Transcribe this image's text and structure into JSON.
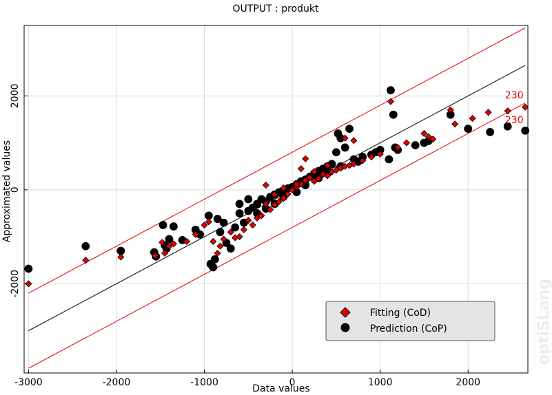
{
  "colors": {
    "fitting": "#e00000",
    "prediction": "#000000",
    "bounds": "#e82020",
    "ideal": "#222222"
  },
  "watermark": "optiSLang",
  "chart_data": {
    "type": "scatter",
    "title": "OUTPUT : produkt",
    "xlabel": "Data values",
    "ylabel": "Approximated values",
    "xlim": [
      -3050,
      2680
    ],
    "ylim": [
      -3900,
      3500
    ],
    "x_ticks": [
      -3000,
      -2000,
      -1000,
      0,
      1000,
      2000
    ],
    "y_ticks": [
      -2000,
      0,
      2000
    ],
    "grid": true,
    "legend_position": "bottom-right",
    "lines": [
      {
        "role": "ideal",
        "x": [
          -3000,
          2650
        ],
        "y": [
          -3000,
          2650
        ]
      },
      {
        "role": "upper-bound",
        "x": [
          -3000,
          2650
        ],
        "y": [
          -2200,
          3450
        ]
      },
      {
        "role": "lower-bound",
        "x": [
          -3000,
          2650
        ],
        "y": [
          -3800,
          1850
        ]
      }
    ],
    "annotations": [
      {
        "text": "230",
        "x": 2630,
        "y": 1950
      },
      {
        "text": "230",
        "x": 2630,
        "y": 1420
      }
    ],
    "series": [
      {
        "name": "Fitting (CoD)",
        "marker": "diamond",
        "points": [
          [
            -3000,
            -2000
          ],
          [
            -2350,
            -1500
          ],
          [
            -1950,
            -1430
          ],
          [
            -1560,
            -1400
          ],
          [
            -1480,
            -1120
          ],
          [
            -1450,
            -1350
          ],
          [
            -1400,
            -1200
          ],
          [
            -1350,
            -1150
          ],
          [
            -1100,
            -950
          ],
          [
            -950,
            -680
          ],
          [
            -900,
            -1100
          ],
          [
            -850,
            -1350
          ],
          [
            -820,
            -1200
          ],
          [
            -780,
            -1050
          ],
          [
            -700,
            -900
          ],
          [
            -650,
            -1020
          ],
          [
            -600,
            -1000
          ],
          [
            -550,
            -850
          ],
          [
            -500,
            -650
          ],
          [
            -450,
            -750
          ],
          [
            -400,
            -600
          ],
          [
            -350,
            -550
          ],
          [
            -300,
            -300
          ],
          [
            -250,
            -420
          ],
          [
            -200,
            -320
          ],
          [
            -150,
            -250
          ],
          [
            -100,
            -180
          ],
          [
            -50,
            -90
          ],
          [
            0,
            0
          ],
          [
            50,
            60
          ],
          [
            100,
            120
          ],
          [
            150,
            200
          ],
          [
            200,
            260
          ],
          [
            250,
            180
          ],
          [
            300,
            240
          ],
          [
            350,
            330
          ],
          [
            400,
            300
          ],
          [
            450,
            380
          ],
          [
            500,
            420
          ],
          [
            550,
            460
          ],
          [
            600,
            500
          ],
          [
            650,
            520
          ],
          [
            700,
            550
          ],
          [
            800,
            620
          ],
          [
            900,
            700
          ],
          [
            1000,
            760
          ],
          [
            1120,
            1880
          ],
          [
            1200,
            900
          ],
          [
            1300,
            1000
          ],
          [
            1500,
            1200
          ],
          [
            1550,
            1130
          ],
          [
            1600,
            1080
          ],
          [
            1800,
            1700
          ],
          [
            1850,
            1400
          ],
          [
            2050,
            1520
          ],
          [
            2230,
            1650
          ],
          [
            2450,
            1680
          ],
          [
            2650,
            1760
          ],
          [
            100,
            450
          ],
          [
            150,
            660
          ],
          [
            600,
            1100
          ],
          [
            700,
            1050
          ],
          [
            -1000,
            -750
          ],
          [
            -1200,
            -1100
          ],
          [
            -300,
            100
          ],
          [
            -200,
            -100
          ],
          [
            -100,
            40
          ],
          [
            50,
            120
          ],
          [
            250,
            390
          ],
          [
            400,
            520
          ]
        ]
      },
      {
        "name": "Prediction (CoP)",
        "marker": "circle",
        "points": [
          [
            -3000,
            -1680
          ],
          [
            -2350,
            -1200
          ],
          [
            -1950,
            -1300
          ],
          [
            -1570,
            -1330
          ],
          [
            -1550,
            -1420
          ],
          [
            -1470,
            -750
          ],
          [
            -1450,
            -1180
          ],
          [
            -1430,
            -1250
          ],
          [
            -1400,
            -1050
          ],
          [
            -1350,
            -780
          ],
          [
            -1250,
            -1070
          ],
          [
            -1100,
            -850
          ],
          [
            -1050,
            -950
          ],
          [
            -950,
            -550
          ],
          [
            -930,
            -1580
          ],
          [
            -900,
            -1650
          ],
          [
            -880,
            -1480
          ],
          [
            -850,
            -620
          ],
          [
            -820,
            -900
          ],
          [
            -780,
            -700
          ],
          [
            -750,
            -1130
          ],
          [
            -700,
            -1250
          ],
          [
            -650,
            -800
          ],
          [
            -600,
            -500
          ],
          [
            -550,
            -700
          ],
          [
            -500,
            -450
          ],
          [
            -450,
            -380
          ],
          [
            -400,
            -300
          ],
          [
            -350,
            -200
          ],
          [
            -300,
            -250
          ],
          [
            -250,
            -150
          ],
          [
            -200,
            -100
          ],
          [
            -150,
            -50
          ],
          [
            -100,
            -20
          ],
          [
            -50,
            30
          ],
          [
            0,
            60
          ],
          [
            50,
            120
          ],
          [
            100,
            180
          ],
          [
            150,
            220
          ],
          [
            200,
            280
          ],
          [
            250,
            350
          ],
          [
            300,
            400
          ],
          [
            350,
            450
          ],
          [
            400,
            500
          ],
          [
            450,
            550
          ],
          [
            500,
            800
          ],
          [
            520,
            1200
          ],
          [
            550,
            1100
          ],
          [
            600,
            900
          ],
          [
            650,
            1300
          ],
          [
            700,
            650
          ],
          [
            750,
            600
          ],
          [
            800,
            700
          ],
          [
            900,
            750
          ],
          [
            950,
            800
          ],
          [
            1000,
            850
          ],
          [
            1100,
            650
          ],
          [
            1120,
            2120
          ],
          [
            1150,
            1600
          ],
          [
            1170,
            900
          ],
          [
            1200,
            850
          ],
          [
            1400,
            950
          ],
          [
            1500,
            1000
          ],
          [
            1550,
            1040
          ],
          [
            1800,
            1600
          ],
          [
            2000,
            1300
          ],
          [
            2250,
            1230
          ],
          [
            2450,
            1350
          ],
          [
            2650,
            1260
          ],
          [
            -400,
            -500
          ],
          [
            -300,
            -400
          ],
          [
            -200,
            -300
          ],
          [
            -100,
            -150
          ],
          [
            50,
            -50
          ],
          [
            150,
            100
          ],
          [
            300,
            250
          ],
          [
            400,
            350
          ],
          [
            550,
            500
          ],
          [
            -600,
            -300
          ],
          [
            -500,
            -200
          ]
        ]
      }
    ]
  }
}
